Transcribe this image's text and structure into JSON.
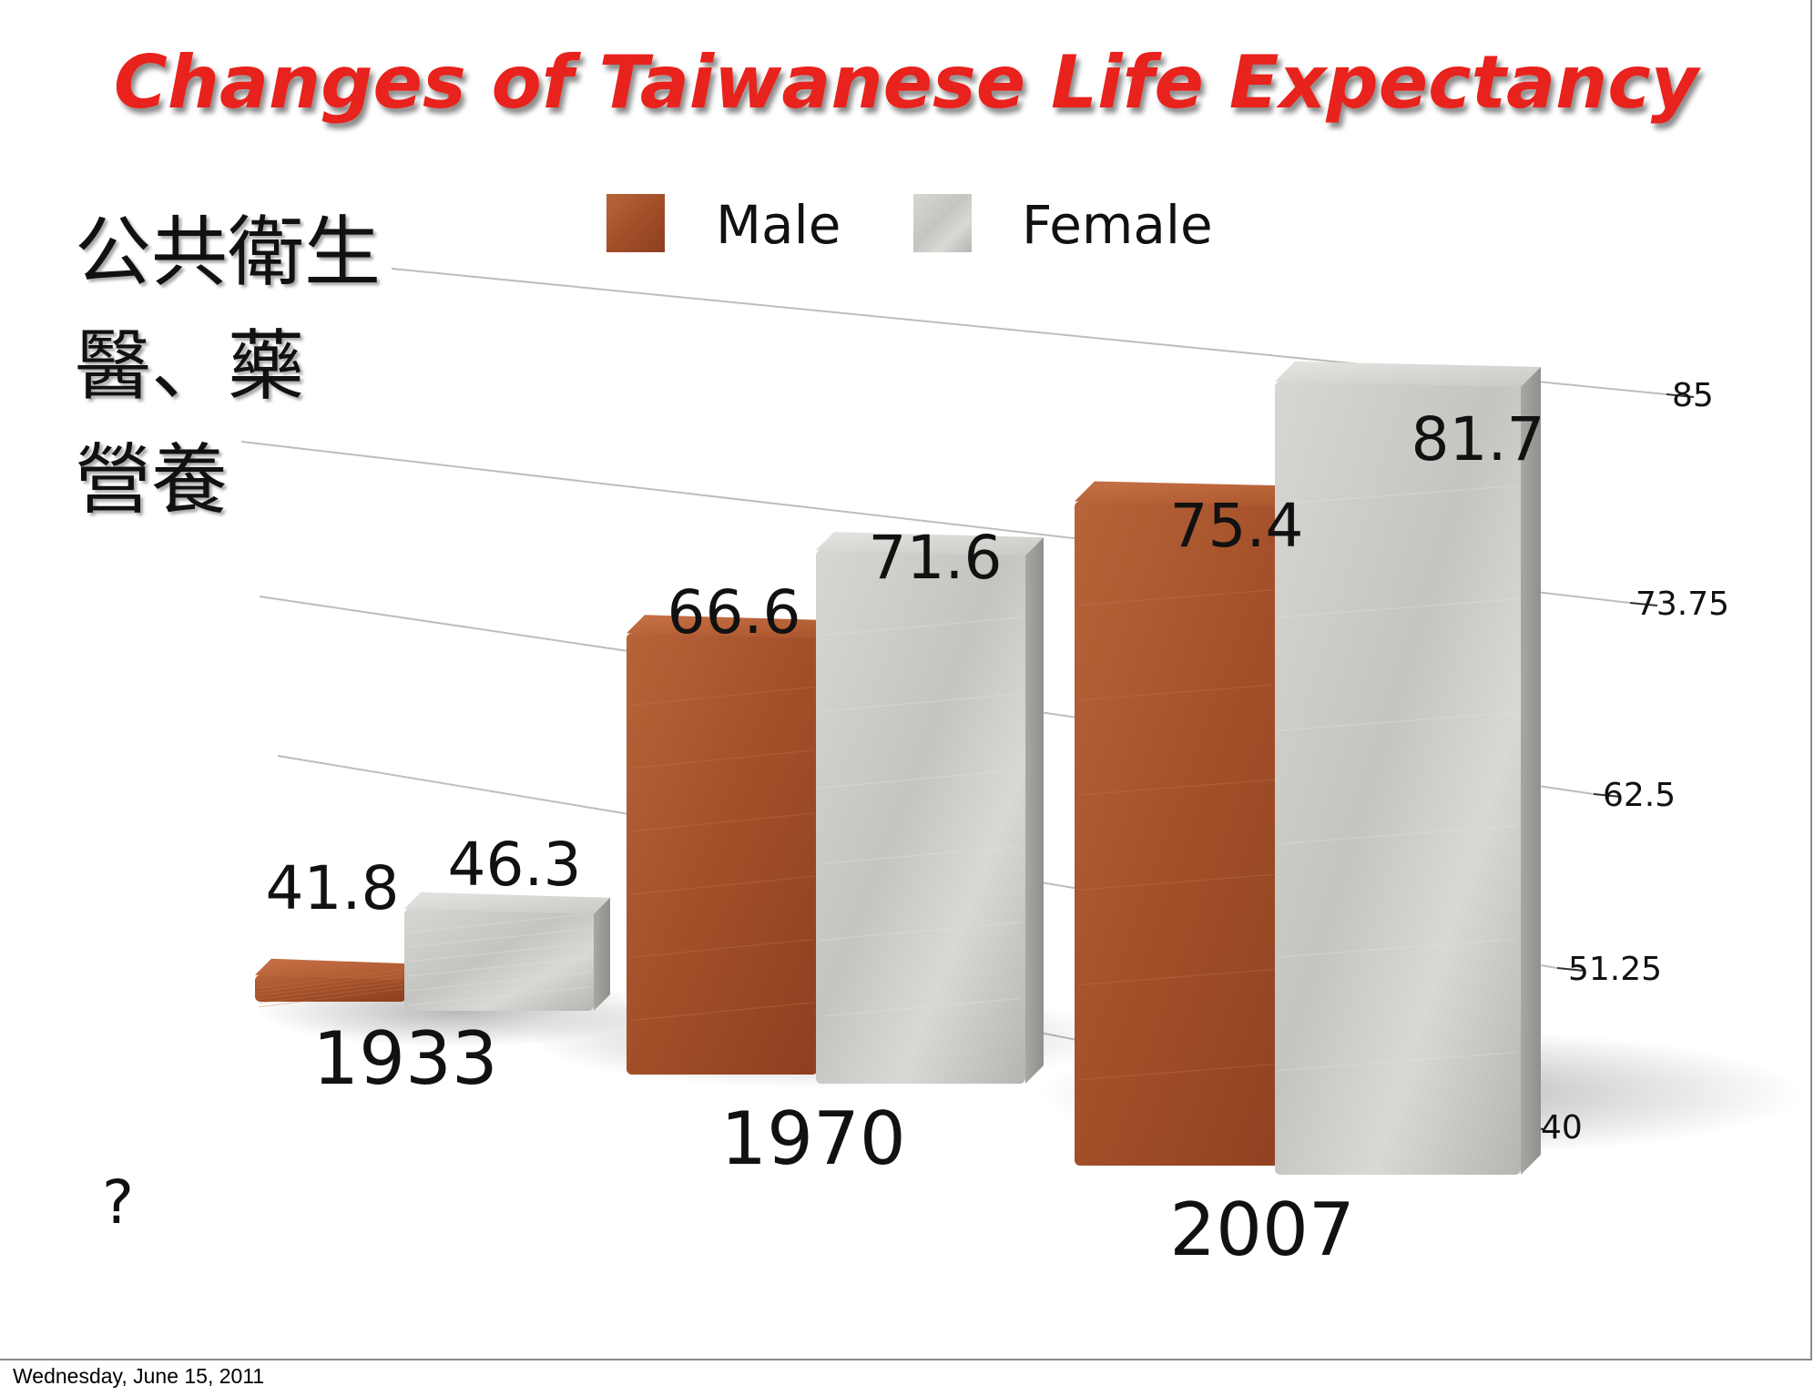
{
  "slide": {
    "side_lines": [
      "公共衛生",
      "醫、藥",
      "營養"
    ],
    "note": "?",
    "footer": "Wednesday, June 15, 2011"
  },
  "colors": {
    "title": "#e8241f",
    "male": "#a9542c",
    "female": "#c9c9c6"
  },
  "chart_data": {
    "type": "bar",
    "title": "Changes of Taiwanese Life Expectancy",
    "categories": [
      "1933",
      "1970",
      "2007"
    ],
    "series": [
      {
        "name": "Male",
        "values": [
          41.8,
          66.6,
          75.4
        ]
      },
      {
        "name": "Female",
        "values": [
          46.3,
          71.6,
          81.7
        ]
      }
    ],
    "data_labels": {
      "Male": [
        "41.8",
        "66.6",
        "75.4"
      ],
      "Female": [
        "46.3",
        "71.6",
        "81.7"
      ]
    },
    "ylim": [
      40,
      85
    ],
    "yticks": [
      "40",
      "51.25",
      "62.5",
      "73.75",
      "85"
    ],
    "ytick_values": [
      40,
      51.25,
      62.5,
      73.75,
      85
    ],
    "y_axis_side": "right",
    "grid": true,
    "legend": "top-center",
    "style": "3d-perspective"
  }
}
